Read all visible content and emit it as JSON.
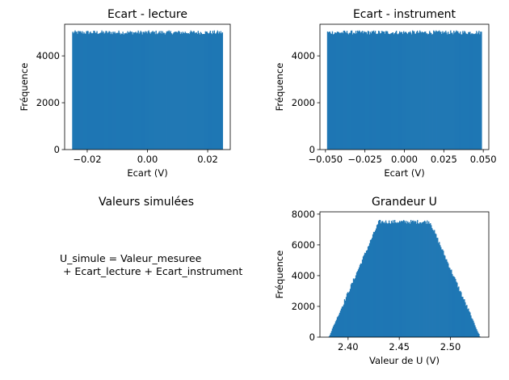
{
  "chart_data": [
    {
      "type": "histogram",
      "title": "Ecart - lecture",
      "xlabel": "Ecart (V)",
      "ylabel": "Fréquence",
      "xlim": [
        -0.0275,
        0.0275
      ],
      "ylim": [
        0,
        5350
      ],
      "xticks": [
        -0.02,
        0.0,
        0.02
      ],
      "xtick_labels": [
        "−0.02",
        "0.00",
        "0.02"
      ],
      "yticks": [
        0,
        2000,
        4000
      ],
      "ytick_labels": [
        "0",
        "2000",
        "4000"
      ],
      "distribution": "uniform",
      "range": [
        -0.025,
        0.025
      ],
      "level": 5000,
      "color": "#1f77b4",
      "grid": false
    },
    {
      "type": "histogram",
      "title": "Ecart - instrument",
      "xlabel": "Ecart (V)",
      "ylabel": "Fréquence",
      "xlim": [
        -0.0535,
        0.0535
      ],
      "ylim": [
        0,
        5350
      ],
      "xticks": [
        -0.05,
        -0.025,
        0.0,
        0.025,
        0.05
      ],
      "xtick_labels": [
        "−0.050",
        "−0.025",
        "0.000",
        "0.025",
        "0.050"
      ],
      "yticks": [
        0,
        2000,
        4000
      ],
      "ytick_labels": [
        "0",
        "2000",
        "4000"
      ],
      "distribution": "uniform",
      "range": [
        -0.049,
        0.049
      ],
      "level": 5000,
      "color": "#1f77b4",
      "grid": false
    },
    {
      "type": "text",
      "title": "Valeurs simulées",
      "lines": [
        "U_simule = Valeur_mesuree",
        " + Ecart_lecture + Ecart_instrument"
      ]
    },
    {
      "type": "histogram",
      "title": "Grandeur U",
      "xlabel": "Valeur de U (V)",
      "ylabel": "Fréquence",
      "xlim": [
        2.3725,
        2.5375
      ],
      "ylim": [
        0,
        8150
      ],
      "xticks": [
        2.4,
        2.45,
        2.5
      ],
      "xtick_labels": [
        "2.40",
        "2.45",
        "2.50"
      ],
      "yticks": [
        0,
        2000,
        4000,
        6000,
        8000
      ],
      "ytick_labels": [
        "0",
        "2000",
        "4000",
        "6000",
        "8000"
      ],
      "distribution": "trapezoid",
      "range": [
        2.381,
        2.529
      ],
      "plateau": [
        2.43,
        2.48
      ],
      "level": 7500,
      "color": "#1f77b4",
      "grid": false
    }
  ]
}
